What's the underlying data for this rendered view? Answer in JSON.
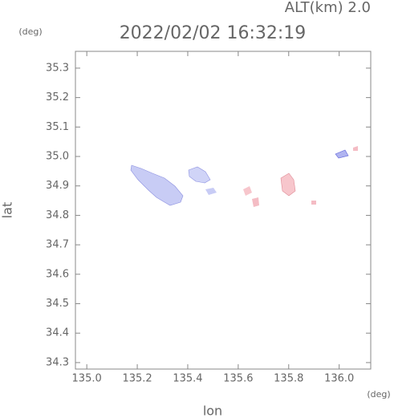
{
  "chart_data": {
    "type": "map",
    "title": "2022/02/02 16:32:19",
    "subtitle": "ALT(km) 2.0",
    "x_label": "lon",
    "y_label": "lat",
    "x_unit": "(deg)",
    "y_unit": "(deg)",
    "xlim": [
      134.955,
      136.125
    ],
    "ylim": [
      34.278,
      35.357
    ],
    "xticks": [
      {
        "value": 135,
        "label": "135.0"
      },
      135.2,
      135.4,
      135.6,
      135.8,
      {
        "value": 136,
        "label": "136.0"
      }
    ],
    "yticks": [
      34.3,
      34.4,
      34.5,
      34.6,
      34.7,
      34.8,
      34.9,
      {
        "value": 35,
        "label": "35.0"
      },
      35.1,
      35.2,
      35.3
    ]
  }
}
